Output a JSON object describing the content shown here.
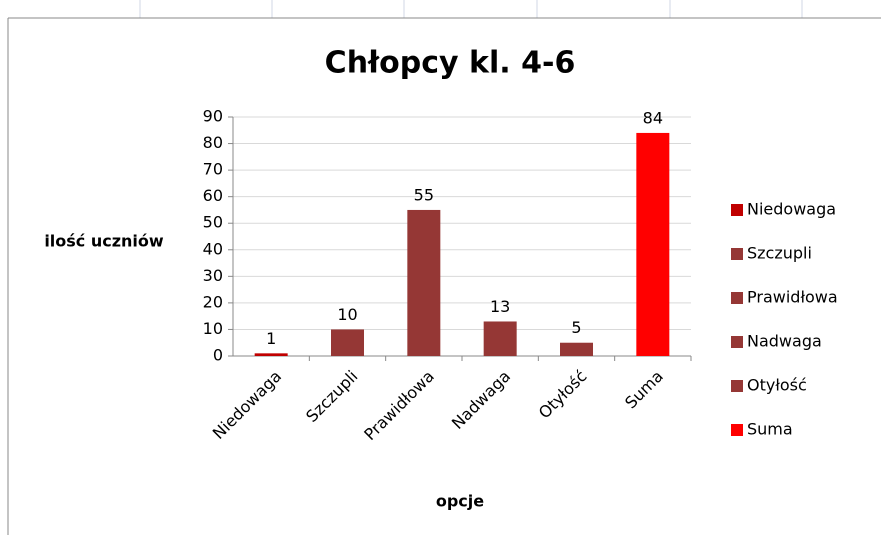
{
  "chart_data": {
    "type": "bar",
    "title": "Chłopcy kl. 4-6",
    "x_label": "opcje",
    "y_label": "ilość uczniów",
    "categories": [
      "Niedowaga",
      "Szczupli",
      "Prawidłowa",
      "Nadwaga",
      "Otyłość",
      "Suma"
    ],
    "values": [
      1,
      10,
      55,
      13,
      5,
      84
    ],
    "colors": [
      "#c00000",
      "#953735",
      "#953735",
      "#953735",
      "#953735",
      "#ff0000"
    ],
    "ylim": [
      0,
      90
    ],
    "yticks": [
      0,
      10,
      20,
      30,
      40,
      50,
      60,
      70,
      80,
      90
    ],
    "grid": true,
    "legend": "right"
  }
}
